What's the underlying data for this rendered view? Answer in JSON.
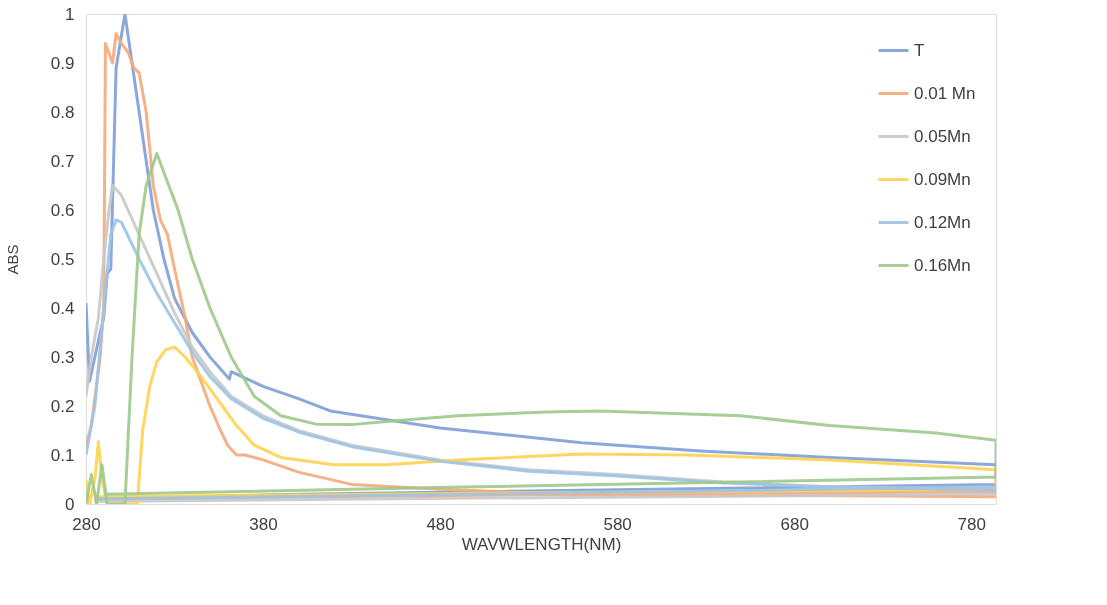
{
  "chart_data": {
    "type": "line",
    "xlabel": "WAVWLENGTH(NM)",
    "ylabel": "ABS",
    "xlim": [
      280,
      794
    ],
    "xticks": [
      280,
      380,
      480,
      580,
      680,
      780
    ],
    "ylim": [
      0,
      1
    ],
    "yticks": [
      0,
      0.1,
      0.2,
      0.3,
      0.4,
      0.5,
      0.6,
      0.7,
      0.8,
      0.9,
      1
    ],
    "grid": false,
    "legend": "top right",
    "marker": "none",
    "line_style": "solid",
    "series": [
      {
        "name": "T",
        "color": "#7f9ed6",
        "x": [
          280,
          282,
          285,
          288,
          290,
          292,
          294,
          297,
          302,
          306,
          312,
          318,
          324,
          330,
          340,
          350,
          361,
          362,
          380,
          400,
          418,
          480,
          560,
          627,
          700,
          794,
          794,
          600,
          400,
          285
        ],
        "values": [
          0.41,
          0.25,
          0.3,
          0.35,
          0.38,
          0.47,
          0.48,
          0.89,
          1.0,
          0.9,
          0.75,
          0.6,
          0.5,
          0.42,
          0.35,
          0.3,
          0.255,
          0.27,
          0.24,
          0.215,
          0.19,
          0.155,
          0.125,
          0.108,
          0.095,
          0.08,
          0.04,
          0.03,
          0.02,
          0.01
        ]
      },
      {
        "name": "0.01 Mn",
        "color": "#f4a97a",
        "x": [
          280,
          283,
          288,
          290,
          291,
          295,
          297,
          300,
          304,
          307,
          310,
          314,
          318,
          322,
          326,
          330,
          336,
          340,
          345,
          350,
          356,
          360,
          365,
          370,
          380,
          400,
          430,
          480,
          550,
          650,
          794,
          794,
          500,
          285
        ],
        "values": [
          0.12,
          0.16,
          0.3,
          0.4,
          0.94,
          0.9,
          0.96,
          0.94,
          0.92,
          0.89,
          0.88,
          0.8,
          0.65,
          0.58,
          0.55,
          0.48,
          0.38,
          0.3,
          0.25,
          0.2,
          0.15,
          0.12,
          0.1,
          0.1,
          0.09,
          0.065,
          0.04,
          0.03,
          0.02,
          0.018,
          0.015,
          0.025,
          0.018,
          0.01
        ]
      },
      {
        "name": "0.05Mn",
        "color": "#c8c8c8",
        "x": [
          280,
          283,
          287,
          290,
          293,
          295,
          300,
          310,
          320,
          330,
          340,
          350,
          362,
          380,
          400,
          430,
          480,
          530,
          580,
          640,
          700,
          794,
          794,
          500,
          285
        ],
        "values": [
          0.22,
          0.3,
          0.38,
          0.5,
          0.6,
          0.65,
          0.63,
          0.55,
          0.47,
          0.39,
          0.32,
          0.27,
          0.22,
          0.18,
          0.15,
          0.12,
          0.09,
          0.07,
          0.06,
          0.045,
          0.035,
          0.03,
          0.02,
          0.012,
          0.005
        ]
      },
      {
        "name": "0.09Mn",
        "color": "#ffd34f",
        "x": [
          280,
          282,
          285,
          287,
          289,
          292,
          300,
          309,
          312,
          316,
          320,
          325,
          330,
          336,
          345,
          355,
          365,
          375,
          390,
          420,
          450,
          490,
          560,
          620,
          700,
          794,
          794,
          500,
          285
        ],
        "values": [
          0.05,
          0.0,
          0.05,
          0.127,
          0.05,
          0.0,
          0.0,
          0.0,
          0.15,
          0.24,
          0.29,
          0.315,
          0.32,
          0.3,
          0.26,
          0.21,
          0.16,
          0.12,
          0.095,
          0.08,
          0.08,
          0.09,
          0.102,
          0.1,
          0.09,
          0.07,
          0.03,
          0.022,
          0.015
        ]
      },
      {
        "name": "0.12Mn",
        "color": "#9dc3e6",
        "x": [
          280,
          285,
          290,
          294,
          297,
          300,
          310,
          320,
          330,
          340,
          350,
          362,
          380,
          400,
          430,
          480,
          530,
          580,
          640,
          700,
          794,
          794,
          500,
          285
        ],
        "values": [
          0.1,
          0.2,
          0.4,
          0.55,
          0.58,
          0.575,
          0.5,
          0.43,
          0.37,
          0.31,
          0.26,
          0.215,
          0.175,
          0.147,
          0.117,
          0.087,
          0.067,
          0.057,
          0.043,
          0.034,
          0.028,
          0.035,
          0.02,
          0.01
        ]
      },
      {
        "name": "0.16Mn",
        "color": "#9dc98a",
        "x": [
          280,
          283,
          286,
          289,
          292,
          296,
          300,
          302,
          306,
          310,
          314,
          320,
          332,
          340,
          350,
          362,
          375,
          390,
          410,
          430,
          455,
          490,
          540,
          570,
          650,
          700,
          760,
          794,
          794,
          500,
          290
        ],
        "values": [
          0.0,
          0.06,
          0.0,
          0.08,
          0.0,
          0.0,
          0.0,
          0.0,
          0.3,
          0.55,
          0.65,
          0.715,
          0.6,
          0.5,
          0.4,
          0.3,
          0.22,
          0.18,
          0.163,
          0.162,
          0.17,
          0.18,
          0.188,
          0.19,
          0.18,
          0.16,
          0.145,
          0.13,
          0.055,
          0.035,
          0.02
        ]
      }
    ]
  }
}
